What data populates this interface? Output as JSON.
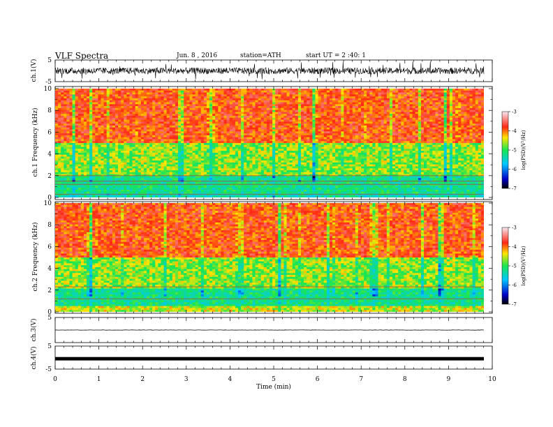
{
  "header": {
    "title": "VLF Spectra",
    "date": "Jun. 8 , 2016",
    "station": "station=ATH",
    "start": "start UT = 2 :40: 1"
  },
  "colors": {
    "low": "#0000c8",
    "mid_low": "#00c8ff",
    "mid": "#19e650",
    "mid_high": "#ffe600",
    "high": "#ff2814",
    "peak": "#f0c8d2",
    "trace": "#000000"
  },
  "chart_data": [
    {
      "type": "line",
      "name": "ch1-waveform",
      "ylabel": "ch.1(V)",
      "ylim": [
        -5,
        5
      ],
      "yticks": [
        "5",
        "-5"
      ],
      "xlim": [
        0,
        9.8
      ],
      "description_values": {
        "mean_level": 0.0,
        "typical_amplitude": 1.5,
        "max_spike": 4.5
      }
    },
    {
      "type": "heatmap",
      "name": "ch1-spectrogram",
      "ylabel": "ch.1 Frequency (kHz)",
      "ylim": [
        0,
        10
      ],
      "yticks": [
        "0",
        "2",
        "4",
        "6",
        "8",
        "10"
      ],
      "xlim": [
        0,
        9.8
      ],
      "colorbar": {
        "label": "log(PSD)(V²/Hz)",
        "range": [
          -7,
          -3
        ],
        "ticks": [
          "-3",
          "-4",
          "-5",
          "-6",
          "-7"
        ]
      },
      "bands": [
        {
          "freq_khz": [
            0,
            0.4
          ],
          "level": -5.5
        },
        {
          "freq_khz": [
            0.4,
            2.0
          ],
          "level": -5.3
        },
        {
          "freq_khz": [
            2.0,
            5.0
          ],
          "level": -4.7
        },
        {
          "freq_khz": [
            5.0,
            10
          ],
          "level": -3.8
        }
      ],
      "tones_khz": [
        0.3,
        1.2,
        1.5,
        2.0
      ]
    },
    {
      "type": "heatmap",
      "name": "ch2-spectrogram",
      "ylabel": "ch.2 Frequency (kHz)",
      "ylim": [
        0,
        10
      ],
      "yticks": [
        "0",
        "2",
        "4",
        "6",
        "8",
        "10"
      ],
      "xlim": [
        0,
        9.8
      ],
      "colorbar": {
        "label": "log(PSD)(V²/Hz)",
        "range": [
          -7,
          -3
        ],
        "ticks": [
          "-3",
          "-4",
          "-5",
          "-6",
          "-7"
        ]
      },
      "bands": [
        {
          "freq_khz": [
            0,
            0.6
          ],
          "level": -4.5
        },
        {
          "freq_khz": [
            0.6,
            2.2
          ],
          "level": -5.3
        },
        {
          "freq_khz": [
            2.2,
            5.0
          ],
          "level": -4.7
        },
        {
          "freq_khz": [
            5.0,
            10
          ],
          "level": -3.8
        }
      ],
      "tones_khz": [
        1.2,
        2.3
      ]
    },
    {
      "type": "line",
      "name": "ch3-waveform",
      "ylabel": "ch.3(V)",
      "ylim": [
        -5,
        5
      ],
      "yticks": [
        "5"
      ],
      "xlim": [
        0,
        9.8
      ],
      "description_values": {
        "mean_level": 0.0,
        "typical_amplitude": 0.05
      }
    },
    {
      "type": "line",
      "name": "ch4-waveform",
      "ylabel": "ch.4(V)",
      "ylim": [
        -5,
        5
      ],
      "yticks": [
        "5",
        "-5"
      ],
      "xlim": [
        0,
        9.8
      ],
      "description_values": {
        "mean_level": -0.5,
        "typical_amplitude": 0.3
      }
    }
  ],
  "xaxis": {
    "label": "Time (min)",
    "range": [
      0,
      10
    ],
    "ticks": [
      "0",
      "1",
      "2",
      "3",
      "4",
      "5",
      "6",
      "7",
      "8",
      "9",
      "10"
    ]
  }
}
